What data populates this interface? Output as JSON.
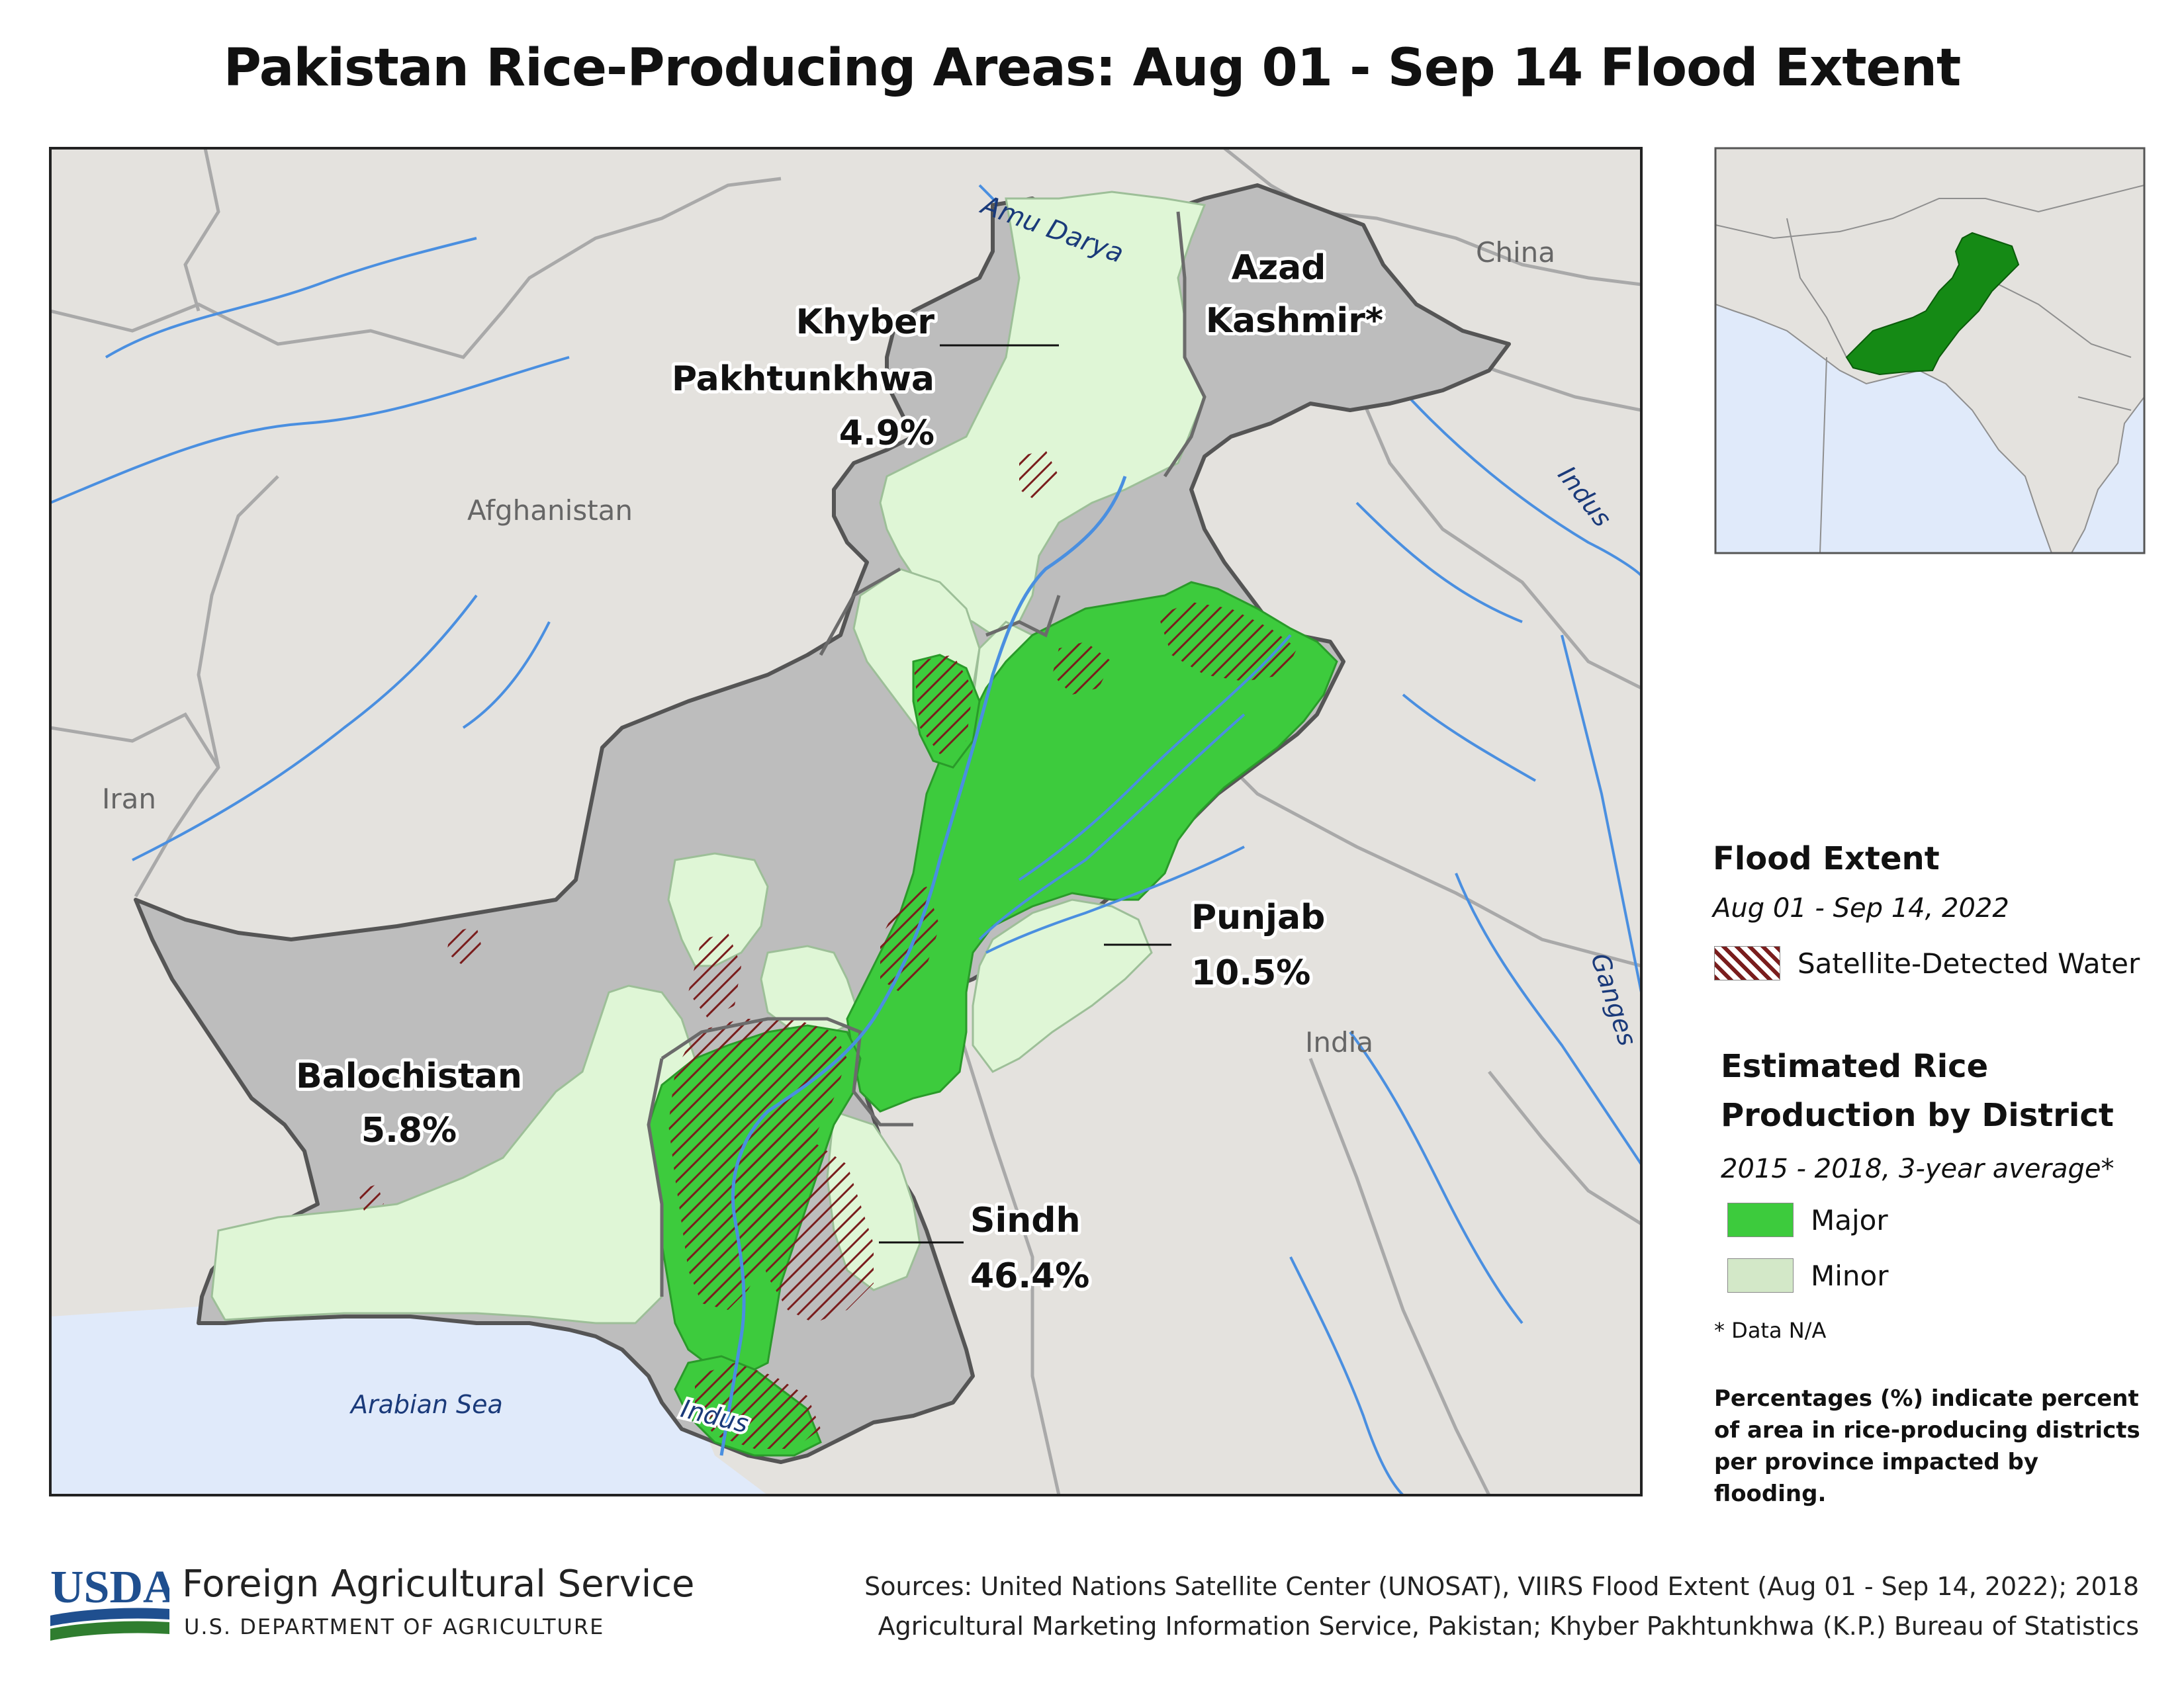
{
  "title": "Pakistan Rice-Producing Areas: Aug 01 - Sep 14 Flood Extent",
  "colors": {
    "land": "#e4e2de",
    "sea": "#e0eafa",
    "other_district": "#bdbdbd",
    "major": "#3dcb3d",
    "minor": "#dff6d6",
    "flood": "#7a1d1d",
    "river": "#4a8fe0",
    "inset_pakistan": "#158a15"
  },
  "map_labels": {
    "amu_darya": "Amu Darya",
    "china": "China",
    "afghanistan": "Afghanistan",
    "iran": "Iran",
    "india": "India",
    "indus_upper": "Indus",
    "indus_lower": "Indus",
    "ganges": "Ganges",
    "arabian_sea": "Arabian Sea"
  },
  "provinces": {
    "kp": {
      "name_line1": "Khyber",
      "name_line2": "Pakhtunkhwa",
      "pct": "4.9%"
    },
    "azad": {
      "name_line1": "Azad",
      "name_line2": "Kashmir*"
    },
    "punjab": {
      "name": "Punjab",
      "pct": "10.5%"
    },
    "balochistan": {
      "name": "Balochistan",
      "pct": "5.8%"
    },
    "sindh": {
      "name": "Sindh",
      "pct": "46.4%"
    }
  },
  "legend": {
    "flood_title": "Flood Extent",
    "flood_period": "Aug 01 - Sep 14, 2022",
    "flood_item": "Satellite-Detected Water",
    "rice_title_line1": "Estimated Rice",
    "rice_title_line2": "Production by District",
    "rice_period": "2015 - 2018, 3-year average*",
    "major": "Major",
    "minor": "Minor",
    "data_na": "* Data N/A",
    "pct_note": "Percentages (%) indicate percent of area in rice-producing districts per province impacted by flooding."
  },
  "footer": {
    "logo_text": "USDA",
    "agency": "Foreign Agricultural Service",
    "department": "U.S. DEPARTMENT OF AGRICULTURE",
    "sources_line1": "Sources: United Nations Satellite Center (UNOSAT), VIIRS Flood Extent (Aug 01 - Sep 14, 2022); 2018",
    "sources_line2": "Agricultural Marketing Information Service, Pakistan; Khyber Pakhtunkhwa (K.P.) Bureau of Statistics"
  }
}
